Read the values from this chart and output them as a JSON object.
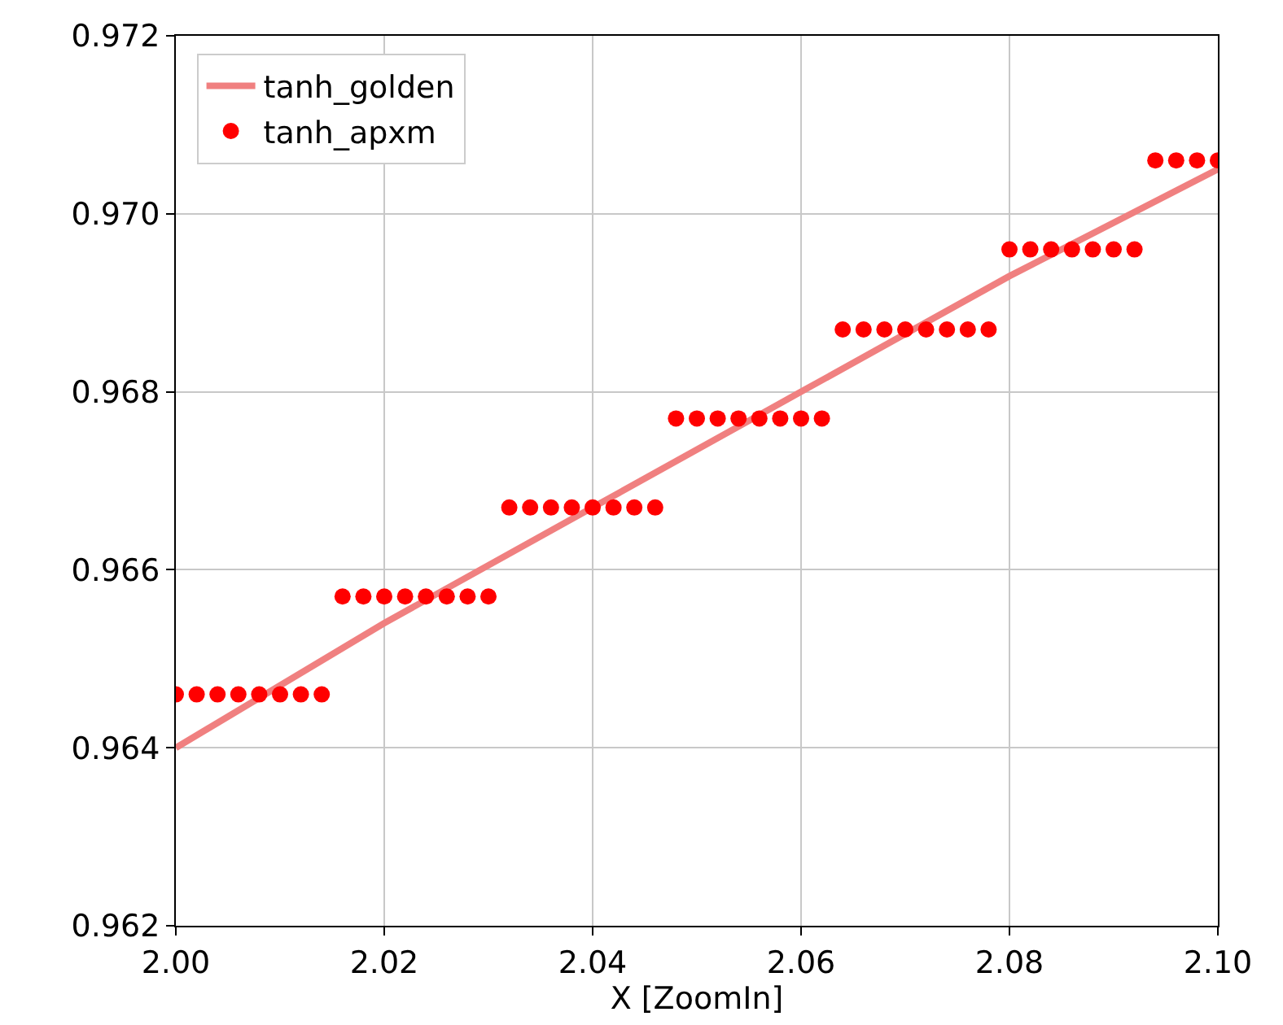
{
  "chart_data": {
    "type": "line",
    "xlabel": "X [ZoomIn]",
    "xlim": [
      2.0,
      2.1
    ],
    "xticks": [
      {
        "value": 2.0,
        "label": "2.00"
      },
      {
        "value": 2.02,
        "label": "2.02"
      },
      {
        "value": 2.04,
        "label": "2.04"
      },
      {
        "value": 2.06,
        "label": "2.06"
      },
      {
        "value": 2.08,
        "label": "2.08"
      },
      {
        "value": 2.1,
        "label": "2.10"
      }
    ],
    "ylim": [
      0.962,
      0.972
    ],
    "yticks": [
      0.962,
      0.964,
      0.966,
      0.968,
      {
        "value": 0.97,
        "label": "0.970"
      },
      0.972
    ],
    "grid": true,
    "legend": "top left",
    "series": [
      {
        "name": "tanh_golden",
        "color": "#f08080",
        "marker": "none",
        "line_style": "solid",
        "x": [
          2.0,
          2.02,
          2.04,
          2.06,
          2.08,
          2.1
        ],
        "values": [
          0.964,
          0.9654,
          0.9667,
          0.968,
          0.9693,
          0.9705
        ]
      },
      {
        "name": "tanh_apxm",
        "type": "scatter",
        "color": "#ff0000",
        "marker": "circle",
        "x": [
          2.0,
          2.002,
          2.004,
          2.006,
          2.008,
          2.01,
          2.012,
          2.014,
          2.016,
          2.018,
          2.02,
          2.022,
          2.024,
          2.026,
          2.028,
          2.03,
          2.032,
          2.034,
          2.036,
          2.038,
          2.04,
          2.042,
          2.044,
          2.046,
          2.048,
          2.05,
          2.052,
          2.054,
          2.056,
          2.058,
          2.06,
          2.062,
          2.064,
          2.066,
          2.068,
          2.07,
          2.072,
          2.074,
          2.076,
          2.078,
          2.08,
          2.082,
          2.084,
          2.086,
          2.088,
          2.09,
          2.092,
          2.094,
          2.096,
          2.098,
          2.1
        ],
        "values": [
          0.9646,
          0.9646,
          0.9646,
          0.9646,
          0.9646,
          0.9646,
          0.9646,
          0.9646,
          0.9657,
          0.9657,
          0.9657,
          0.9657,
          0.9657,
          0.9657,
          0.9657,
          0.9657,
          0.9667,
          0.9667,
          0.9667,
          0.9667,
          0.9667,
          0.9667,
          0.9667,
          0.9667,
          0.9677,
          0.9677,
          0.9677,
          0.9677,
          0.9677,
          0.9677,
          0.9677,
          0.9677,
          0.9687,
          0.9687,
          0.9687,
          0.9687,
          0.9687,
          0.9687,
          0.9687,
          0.9687,
          0.9696,
          0.9696,
          0.9696,
          0.9696,
          0.9696,
          0.9696,
          0.9696,
          0.9706,
          0.9706,
          0.9706,
          0.9706
        ]
      }
    ]
  }
}
